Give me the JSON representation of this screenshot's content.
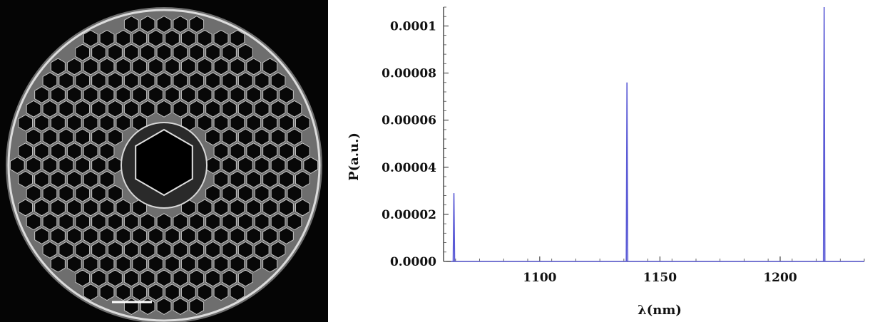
{
  "micrograph": {
    "description_icon": "fiber-cross-section-icon",
    "scale_bar_color": "#ffffff"
  },
  "chart_data": {
    "type": "line",
    "title": "",
    "xlabel": "λ(nm)",
    "ylabel": "P(a.u.)",
    "xlim": [
      1060,
      1235
    ],
    "ylim": [
      0,
      0.000108
    ],
    "x_ticks": [
      1100,
      1150,
      1200
    ],
    "x_tick_labels": [
      "1100",
      "1150",
      "1200"
    ],
    "y_ticks": [
      0,
      2e-05,
      4e-05,
      6e-05,
      8e-05,
      0.0001
    ],
    "y_tick_labels": [
      "0.0000",
      "0.00002",
      "0.00004",
      "0.00006",
      "0.00008",
      "0.0001"
    ],
    "grid": false,
    "line_color": "#5b5bd6",
    "series": [
      {
        "x": [
          1063,
          1064,
          1064.3,
          1064.6,
          1065,
          1135,
          1136,
          1136.3,
          1136.6,
          1137,
          1217,
          1218,
          1218.3,
          1218.6,
          1219,
          1235
        ],
        "y": [
          0,
          0,
          2.9e-05,
          0,
          0,
          0,
          0,
          7.6e-05,
          0,
          0,
          0,
          0,
          0.000108,
          0,
          0,
          0
        ]
      }
    ]
  }
}
